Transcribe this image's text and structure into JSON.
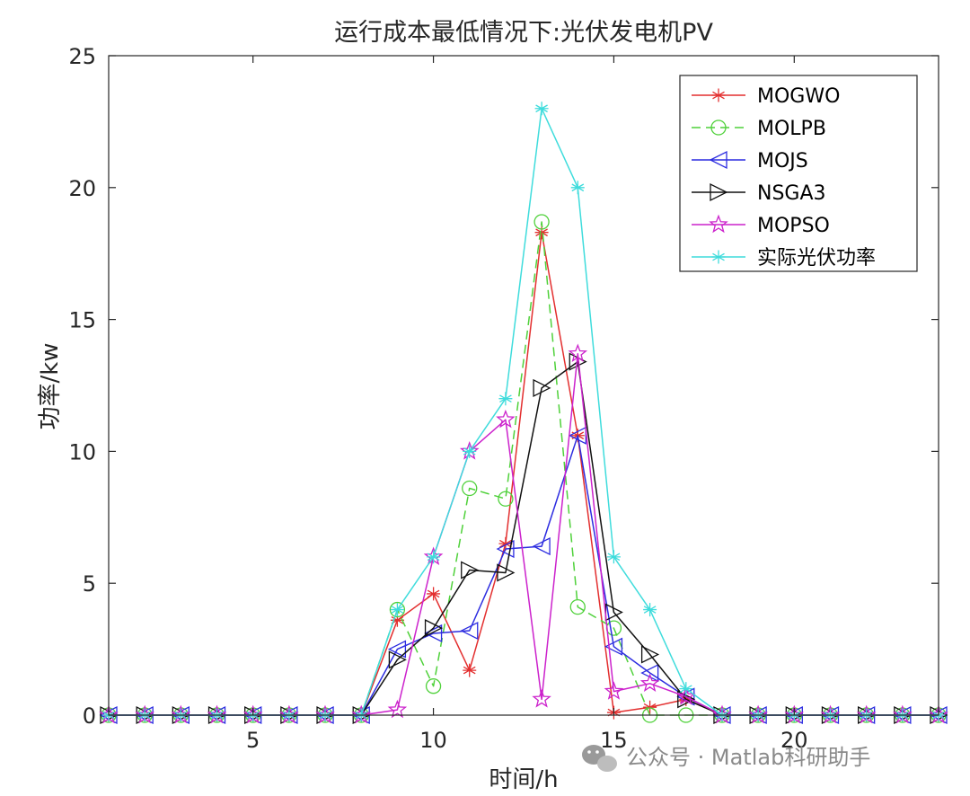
{
  "chart_data": {
    "type": "line",
    "title": "运行成本最低情况下:光伏发电机PV",
    "xlabel": "时间/h",
    "ylabel": "功率/kw",
    "xlim": [
      1,
      24
    ],
    "ylim": [
      0,
      25
    ],
    "xticks": [
      5,
      10,
      15,
      20
    ],
    "yticks": [
      0,
      5,
      10,
      15,
      20,
      25
    ],
    "grid": false,
    "legend_position": "top-right",
    "x": [
      1,
      2,
      3,
      4,
      5,
      6,
      7,
      8,
      9,
      10,
      11,
      12,
      13,
      14,
      15,
      16,
      17,
      18,
      19,
      20,
      21,
      22,
      23,
      24
    ],
    "series": [
      {
        "name": "MOGWO",
        "color": "#e32f2f",
        "marker": "asterisk",
        "dash": "solid",
        "values": [
          0,
          0,
          0,
          0,
          0,
          0,
          0,
          0,
          3.6,
          4.6,
          1.7,
          6.5,
          18.3,
          10.6,
          0.1,
          0.3,
          0.6,
          0,
          0,
          0,
          0,
          0,
          0,
          0
        ]
      },
      {
        "name": "MOLPB",
        "color": "#4fd13a",
        "marker": "circle",
        "dash": "dashed",
        "values": [
          0,
          0,
          0,
          0,
          0,
          0,
          0,
          0,
          4.0,
          1.1,
          8.6,
          8.2,
          18.7,
          4.1,
          3.3,
          0,
          0,
          0,
          0,
          0,
          0,
          0,
          0,
          0
        ]
      },
      {
        "name": "MOJS",
        "color": "#2c2ce0",
        "marker": "triangle-left",
        "dash": "solid",
        "values": [
          0,
          0,
          0,
          0,
          0,
          0,
          0,
          0,
          2.5,
          3.1,
          3.2,
          6.3,
          6.4,
          10.6,
          2.6,
          1.6,
          0.7,
          0,
          0,
          0,
          0,
          0,
          0,
          0
        ]
      },
      {
        "name": "NSGA3",
        "color": "#111111",
        "marker": "triangle-right",
        "dash": "solid",
        "values": [
          0,
          0,
          0,
          0,
          0,
          0,
          0,
          0,
          2.1,
          3.3,
          5.5,
          5.4,
          12.4,
          13.4,
          3.9,
          2.3,
          0.6,
          0,
          0,
          0,
          0,
          0,
          0,
          0
        ]
      },
      {
        "name": "MOPSO",
        "color": "#cc22cc",
        "marker": "star",
        "dash": "solid",
        "values": [
          0,
          0,
          0,
          0,
          0,
          0,
          0,
          0,
          0.2,
          6.0,
          10.0,
          11.2,
          0.6,
          13.7,
          0.9,
          1.2,
          0.7,
          0,
          0,
          0,
          0,
          0,
          0,
          0
        ]
      },
      {
        "name": "实际光伏功率",
        "color": "#3fdcdc",
        "marker": "asterisk",
        "dash": "solid",
        "values": [
          0,
          0,
          0,
          0,
          0,
          0,
          0,
          0,
          4.0,
          6.0,
          10.0,
          12.0,
          23.0,
          20.0,
          6.0,
          4.0,
          1.0,
          0,
          0,
          0,
          0,
          0,
          0,
          0
        ]
      }
    ]
  },
  "watermark": "公众号 · Matlab科研助手"
}
